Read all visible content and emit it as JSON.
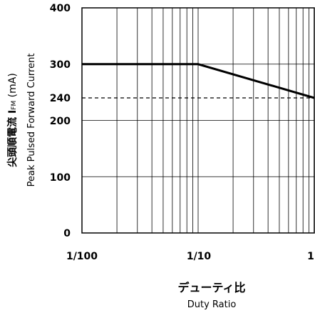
{
  "chart_data": {
    "type": "line",
    "x_scale": "log",
    "xlim": [
      "1/100",
      "1"
    ],
    "ylim": [
      0,
      400
    ],
    "x_ticks": [
      {
        "value": 0.01,
        "label": "1/100"
      },
      {
        "value": 0.1,
        "label": "1/10"
      },
      {
        "value": 1,
        "label": "1"
      }
    ],
    "y_ticks": [
      0,
      100,
      200,
      240,
      300,
      400
    ],
    "y_tick_labels": [
      "0",
      "100",
      "200",
      "240",
      "300",
      "400"
    ],
    "grid": true,
    "xlabel_ja": "デューティ比",
    "xlabel_en": "Duty Ratio",
    "ylabel_ja_main": "尖頭順電流  I",
    "ylabel_ja_sub": "FM",
    "ylabel_ja_unit": " (mA)",
    "ylabel_en": "Peak Pulsed Forward Current",
    "series": [
      {
        "style": "solid",
        "points": [
          [
            0.01,
            300
          ],
          [
            0.1,
            300
          ],
          [
            1,
            240
          ]
        ]
      },
      {
        "style": "dashed",
        "points": [
          [
            0.01,
            240
          ],
          [
            1,
            240
          ]
        ]
      }
    ]
  }
}
